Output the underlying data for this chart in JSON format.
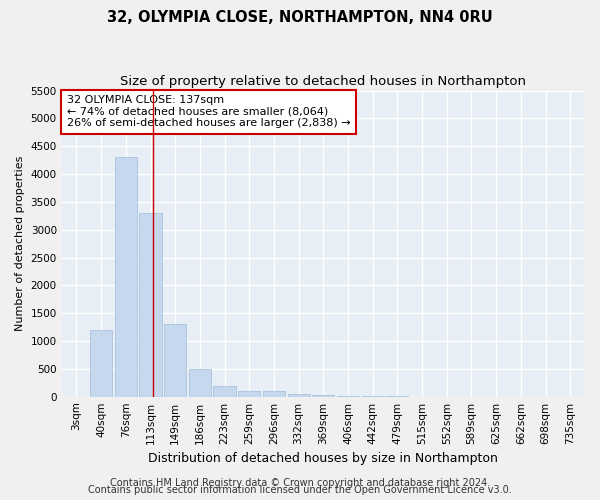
{
  "title": "32, OLYMPIA CLOSE, NORTHAMPTON, NN4 0RU",
  "subtitle": "Size of property relative to detached houses in Northampton",
  "xlabel": "Distribution of detached houses by size in Northampton",
  "ylabel": "Number of detached properties",
  "categories": [
    "3sqm",
    "40sqm",
    "76sqm",
    "113sqm",
    "149sqm",
    "186sqm",
    "223sqm",
    "259sqm",
    "296sqm",
    "332sqm",
    "369sqm",
    "406sqm",
    "442sqm",
    "479sqm",
    "515sqm",
    "552sqm",
    "589sqm",
    "625sqm",
    "662sqm",
    "698sqm",
    "735sqm"
  ],
  "values": [
    0,
    1200,
    4300,
    3300,
    1300,
    500,
    200,
    100,
    100,
    50,
    30,
    20,
    10,
    5,
    3,
    2,
    1,
    1,
    0,
    0,
    0
  ],
  "bar_color": "#c5d8ed",
  "bar_edge_color": "#a0bcd8",
  "bg_color": "#e8eef5",
  "grid_color": "#ffffff",
  "annotation_box_color": "#ffffff",
  "annotation_box_edge": "#cc0000",
  "vline_color": "#cc0000",
  "vline_x": 3.1,
  "annotation_text": "32 OLYMPIA CLOSE: 137sqm\n← 74% of detached houses are smaller (8,064)\n26% of semi-detached houses are larger (2,838) →",
  "ylim": [
    0,
    5500
  ],
  "yticks": [
    0,
    500,
    1000,
    1500,
    2000,
    2500,
    3000,
    3500,
    4000,
    4500,
    5000,
    5500
  ],
  "footer1": "Contains HM Land Registry data © Crown copyright and database right 2024.",
  "footer2": "Contains public sector information licensed under the Open Government Licence v3.0.",
  "title_fontsize": 10.5,
  "subtitle_fontsize": 9.5,
  "xlabel_fontsize": 9,
  "ylabel_fontsize": 8,
  "tick_fontsize": 7.5,
  "annotation_fontsize": 8,
  "footer_fontsize": 7
}
